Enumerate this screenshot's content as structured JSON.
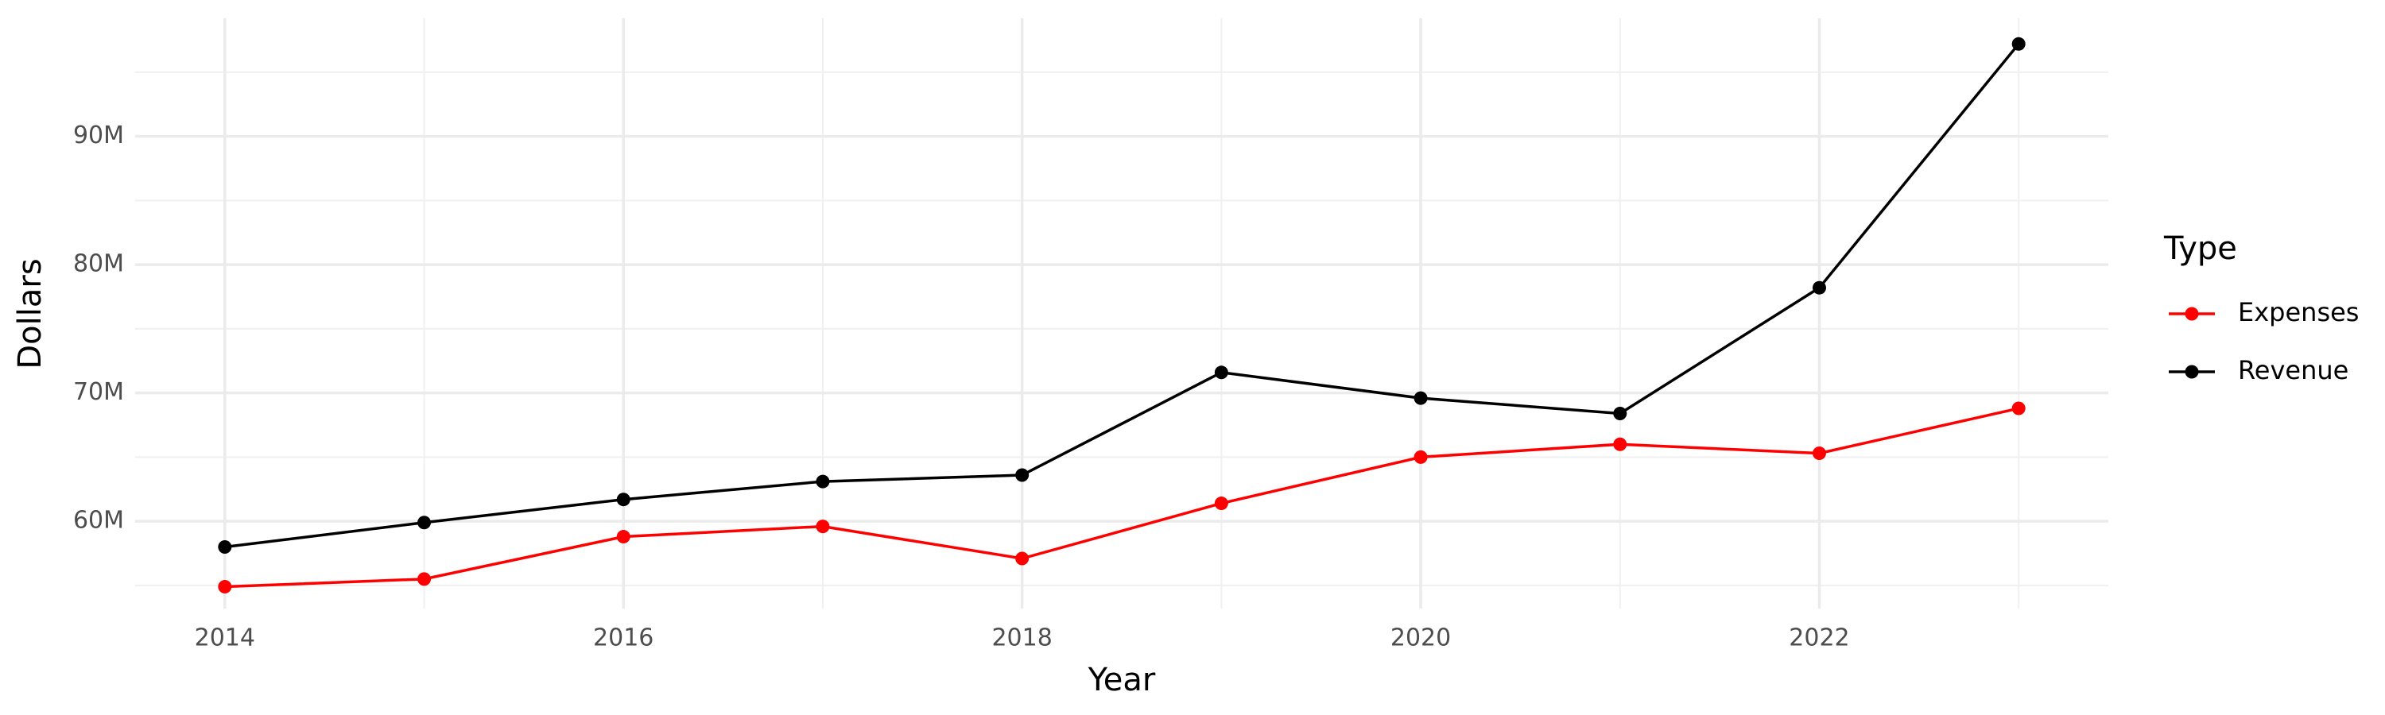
{
  "chart_data": {
    "type": "line",
    "x_label": "Year",
    "y_label": "Dollars",
    "legend_title": "Type",
    "x": [
      2014,
      2015,
      2016,
      2017,
      2018,
      2019,
      2020,
      2021,
      2022,
      2023
    ],
    "series": [
      {
        "name": "Expenses",
        "color": "#ff0000",
        "values": [
          54900000,
          55500000,
          58800000,
          59600000,
          57100000,
          61400000,
          65000000,
          66000000,
          65300000,
          68800000
        ]
      },
      {
        "name": "Revenue",
        "color": "#000000",
        "values": [
          58000000,
          59900000,
          61700000,
          63100000,
          63600000,
          71600000,
          69600000,
          68400000,
          78200000,
          97200000
        ]
      }
    ],
    "xlim": [
      2013.55,
      2023.45
    ],
    "xticks": [
      2014,
      2016,
      2018,
      2020,
      2022
    ],
    "ylim": [
      53200000,
      99200000
    ],
    "yticks": [
      {
        "value": 60000000,
        "label": "60M"
      },
      {
        "value": 70000000,
        "label": "70M"
      },
      {
        "value": 80000000,
        "label": "80M"
      },
      {
        "value": 90000000,
        "label": "90M"
      }
    ],
    "grid": true,
    "legend_position": "right"
  }
}
